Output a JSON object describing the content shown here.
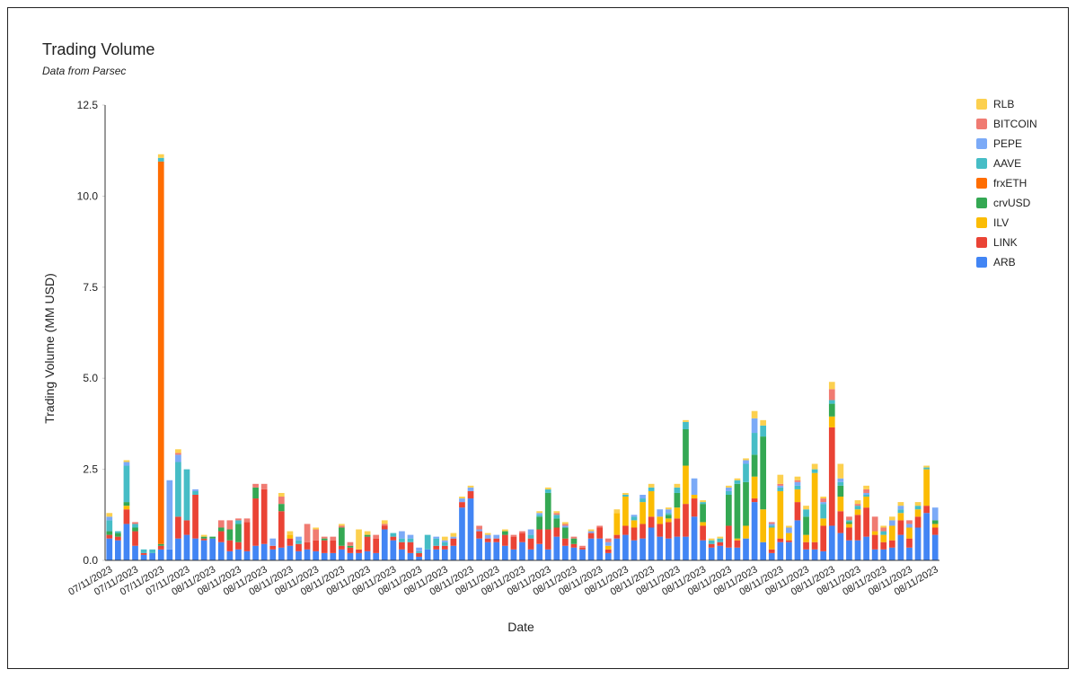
{
  "chart_data": {
    "type": "stacked_bar",
    "title": "Trading Volume",
    "subtitle": "Data from Parsec",
    "x_label": "Date",
    "y_label": "Trading Volume (MM USD)",
    "legend": "right",
    "grid": false,
    "ylim": [
      0,
      12.5
    ],
    "yticks": [
      {
        "value": 0,
        "label": "0.0"
      },
      2.5,
      {
        "value": 5,
        "label": "5.0"
      },
      7.5,
      {
        "value": 10,
        "label": "10.0"
      },
      12.5
    ],
    "categories": [
      "07/11/2023",
      null,
      null,
      "07/11/2023",
      null,
      null,
      "07/11/2023",
      null,
      null,
      "07/11/2023",
      null,
      null,
      "08/11/2023",
      null,
      null,
      "08/11/2023",
      null,
      null,
      "08/11/2023",
      null,
      null,
      "08/11/2023",
      null,
      null,
      "08/11/2023",
      null,
      null,
      "08/11/2023",
      null,
      null,
      "08/11/2023",
      null,
      null,
      "08/11/2023",
      null,
      null,
      "08/11/2023",
      null,
      null,
      "08/11/2023",
      null,
      null,
      "08/11/2023",
      null,
      null,
      "08/11/2023",
      null,
      null,
      "08/11/2023",
      null,
      null,
      "08/11/2023",
      null,
      null,
      "08/11/2023",
      null,
      null,
      "08/11/2023",
      null,
      null,
      "08/11/2023",
      null,
      null,
      "08/11/2023",
      null,
      null,
      "08/11/2023",
      null,
      null,
      "08/11/2023",
      null,
      null,
      "08/11/2023",
      null,
      null,
      "08/11/2023",
      null,
      null,
      "08/11/2023",
      null,
      null,
      "08/11/2023",
      null,
      null,
      "08/11/2023",
      null,
      null,
      "08/11/2023",
      null,
      null,
      "08/11/2023",
      null,
      null,
      "08/11/2023",
      null,
      null,
      "08/11/2023"
    ],
    "series": [
      {
        "name": "ARB",
        "color": "#4285f4",
        "values": [
          0.6,
          0.55,
          1.0,
          0.4,
          0.15,
          0.2,
          0.3,
          0.3,
          0.6,
          0.7,
          0.6,
          0.55,
          0.6,
          0.5,
          0.25,
          0.3,
          0.25,
          0.4,
          0.45,
          0.3,
          0.35,
          0.4,
          0.25,
          0.3,
          0.25,
          0.2,
          0.2,
          0.3,
          0.2,
          0.2,
          0.25,
          0.2,
          0.85,
          0.55,
          0.3,
          0.2,
          0.1,
          0.3,
          0.3,
          0.3,
          0.4,
          1.45,
          1.7,
          0.6,
          0.5,
          0.5,
          0.4,
          0.3,
          0.5,
          0.3,
          0.45,
          0.3,
          0.65,
          0.4,
          0.35,
          0.3,
          0.6,
          0.6,
          0.2,
          0.6,
          0.7,
          0.55,
          0.6,
          0.9,
          0.65,
          0.6,
          0.65,
          0.65,
          1.2,
          0.55,
          0.35,
          0.4,
          0.35,
          0.35,
          0.6,
          1.6,
          0.5,
          0.2,
          0.5,
          0.5,
          1.1,
          0.3,
          0.3,
          0.25,
          0.95,
          0.75,
          0.55,
          0.55,
          0.65,
          0.3,
          0.3,
          0.35,
          0.7,
          0.35,
          0.9,
          1.3,
          0.7
        ]
      },
      {
        "name": "LINK",
        "color": "#ea4335",
        "values": [
          0.1,
          0.1,
          0.4,
          0.4,
          0.05,
          0,
          0.1,
          0,
          0.6,
          0.4,
          1.2,
          0.05,
          0,
          0.3,
          0.3,
          0.2,
          0.8,
          1.3,
          1.5,
          0.1,
          1.0,
          0.2,
          0.2,
          0.2,
          0.3,
          0.35,
          0.35,
          0.1,
          0.15,
          0.1,
          0.4,
          0.4,
          0.1,
          0.1,
          0.2,
          0.3,
          0.1,
          0,
          0.1,
          0.1,
          0.2,
          0.15,
          0.2,
          0.2,
          0.1,
          0.1,
          0.3,
          0.35,
          0.25,
          0.3,
          0.4,
          0.55,
          0.25,
          0.2,
          0.1,
          0.05,
          0.15,
          0.3,
          0.1,
          0.1,
          0.25,
          0.35,
          0.4,
          0.3,
          0.35,
          0.45,
          0.5,
          0.9,
          0.5,
          0.4,
          0.1,
          0.1,
          0.6,
          0.2,
          0,
          0.1,
          0,
          0.1,
          0.1,
          0.05,
          0.5,
          0.2,
          0.2,
          0.7,
          2.7,
          0.6,
          0.35,
          0.7,
          0.8,
          0.4,
          0.2,
          0.2,
          0.4,
          0.25,
          0.3,
          0.2,
          0.2
        ]
      },
      {
        "name": "ILV",
        "color": "#fbbc04",
        "values": [
          0,
          0,
          0.1,
          0,
          0,
          0,
          0,
          0,
          0,
          0,
          0,
          0,
          0,
          0,
          0,
          0,
          0,
          0,
          0,
          0,
          0,
          0.1,
          0,
          0,
          0,
          0,
          0,
          0,
          0,
          0,
          0,
          0,
          0,
          0,
          0,
          0,
          0,
          0,
          0,
          0,
          0,
          0,
          0,
          0,
          0,
          0,
          0,
          0,
          0,
          0,
          0,
          0,
          0,
          0,
          0,
          0,
          0,
          0,
          0.1,
          0.6,
          0.8,
          0.2,
          0.6,
          0.7,
          0.2,
          0.1,
          0.3,
          1.05,
          0.1,
          0.1,
          0,
          0,
          0,
          0.05,
          0.35,
          0.6,
          0.9,
          0.6,
          1.3,
          0.2,
          0.35,
          0.2,
          1.9,
          0.2,
          0.3,
          0.4,
          0.1,
          0.15,
          0.3,
          0.1,
          0.2,
          0.4,
          0.2,
          0.3,
          0.2,
          1.0,
          0.1
        ]
      },
      {
        "name": "crvUSD",
        "color": "#34a853",
        "values": [
          0.1,
          0.1,
          0.1,
          0.1,
          0,
          0,
          0.05,
          0,
          0,
          0,
          0,
          0.05,
          0.05,
          0.1,
          0.3,
          0.5,
          0,
          0.3,
          0,
          0,
          0.2,
          0,
          0,
          0,
          0,
          0.05,
          0,
          0.5,
          0.05,
          0,
          0.05,
          0,
          0,
          0,
          0,
          0,
          0,
          0,
          0,
          0,
          0,
          0,
          0,
          0,
          0,
          0,
          0.1,
          0,
          0,
          0,
          0.35,
          1.0,
          0.25,
          0.3,
          0.15,
          0,
          0,
          0,
          0,
          0,
          0,
          0,
          0,
          0,
          0,
          0.1,
          0.4,
          1.0,
          0,
          0.5,
          0,
          0,
          0.85,
          1.5,
          1.2,
          0.6,
          2.0,
          0,
          0,
          0,
          0,
          0.5,
          0,
          0,
          0.35,
          0.3,
          0.05,
          0,
          0,
          0,
          0,
          0,
          0,
          0,
          0,
          0,
          0.1
        ]
      },
      {
        "name": "frxETH",
        "color": "#ff6d01",
        "values": [
          0,
          0,
          0,
          0,
          0,
          0,
          10.5,
          0,
          0,
          0,
          0,
          0,
          0,
          0,
          0,
          0,
          0,
          0,
          0,
          0,
          0,
          0,
          0,
          0,
          0,
          0,
          0,
          0,
          0,
          0,
          0,
          0,
          0,
          0,
          0,
          0,
          0,
          0,
          0,
          0,
          0,
          0,
          0,
          0,
          0,
          0,
          0,
          0,
          0,
          0,
          0,
          0,
          0,
          0,
          0,
          0,
          0,
          0,
          0,
          0,
          0,
          0,
          0,
          0,
          0,
          0,
          0,
          0,
          0,
          0,
          0,
          0,
          0,
          0,
          0,
          0,
          0,
          0,
          0,
          0,
          0,
          0,
          0,
          0,
          0,
          0,
          0,
          0,
          0,
          0,
          0,
          0,
          0,
          0,
          0,
          0,
          0
        ]
      },
      {
        "name": "AAVE",
        "color": "#46bdc6",
        "values": [
          0.3,
          0.05,
          1.0,
          0.1,
          0.1,
          0.1,
          0.1,
          0,
          1.5,
          1.4,
          0.1,
          0,
          0,
          0,
          0,
          0.1,
          0,
          0,
          0,
          0,
          0,
          0,
          0.1,
          0,
          0,
          0,
          0,
          0,
          0,
          0,
          0,
          0,
          0,
          0.1,
          0.1,
          0.1,
          0.05,
          0.4,
          0.2,
          0.1,
          0,
          0,
          0,
          0,
          0,
          0,
          0,
          0,
          0,
          0.1,
          0.05,
          0.1,
          0.1,
          0,
          0,
          0,
          0,
          0,
          0,
          0,
          0.05,
          0.1,
          0.1,
          0.1,
          0,
          0.05,
          0.15,
          0.2,
          0,
          0.05,
          0.1,
          0.1,
          0.1,
          0.1,
          0.5,
          0.6,
          0.3,
          0.05,
          0.1,
          0,
          0.1,
          0.2,
          0.1,
          0.4,
          0.1,
          0.1,
          0.05,
          0.1,
          0.05,
          0,
          0.1,
          0,
          0.1,
          0,
          0.1,
          0.05,
          0
        ]
      },
      {
        "name": "PEPE",
        "color": "#7baaf7",
        "values": [
          0.1,
          0,
          0.1,
          0,
          0,
          0,
          0,
          1.9,
          0.2,
          0,
          0.05,
          0,
          0,
          0,
          0,
          0,
          0,
          0,
          0,
          0.2,
          0,
          0,
          0.1,
          0,
          0,
          0,
          0,
          0,
          0,
          0,
          0,
          0,
          0,
          0,
          0.2,
          0.1,
          0.1,
          0,
          0.05,
          0.05,
          0.05,
          0.1,
          0.1,
          0.05,
          0.1,
          0.1,
          0,
          0,
          0,
          0.15,
          0.05,
          0,
          0,
          0.05,
          0,
          0,
          0.05,
          0,
          0.1,
          0,
          0,
          0.05,
          0.1,
          0,
          0.2,
          0.1,
          0,
          0,
          0.45,
          0,
          0,
          0,
          0.1,
          0,
          0.1,
          0.4,
          0,
          0.05,
          0.05,
          0.15,
          0.1,
          0,
          0,
          0.05,
          0,
          0.1,
          0,
          0,
          0.05,
          0,
          0,
          0.15,
          0.1,
          0.1,
          0,
          0,
          0.35
        ]
      },
      {
        "name": "BITCOIN",
        "color": "#f07b72",
        "values": [
          0,
          0,
          0,
          0.05,
          0,
          0,
          0,
          0,
          0.05,
          0,
          0,
          0,
          0,
          0.2,
          0.25,
          0.05,
          0.1,
          0.1,
          0.15,
          0,
          0.2,
          0,
          0,
          0.5,
          0.3,
          0.05,
          0.1,
          0.05,
          0.1,
          0,
          0,
          0.1,
          0.05,
          0,
          0,
          0,
          0,
          0,
          0,
          0,
          0,
          0,
          0,
          0.1,
          0,
          0,
          0,
          0.05,
          0.05,
          0,
          0,
          0,
          0.05,
          0.05,
          0.05,
          0.05,
          0,
          0.05,
          0.1,
          0,
          0,
          0,
          0,
          0,
          0,
          0,
          0,
          0,
          0,
          0,
          0,
          0,
          0,
          0,
          0,
          0,
          0,
          0.05,
          0.05,
          0,
          0.05,
          0,
          0,
          0.1,
          0.3,
          0,
          0.1,
          0.05,
          0.1,
          0.4,
          0.1,
          0,
          0,
          0.1,
          0,
          0,
          0
        ]
      },
      {
        "name": "RLB",
        "color": "#fcd04f",
        "values": [
          0.1,
          0,
          0.05,
          0,
          0,
          0,
          0.1,
          0,
          0.1,
          0,
          0,
          0.05,
          0,
          0,
          0,
          0,
          0,
          0,
          0,
          0,
          0.1,
          0.1,
          0,
          0,
          0.05,
          0,
          0,
          0.05,
          0,
          0.55,
          0.1,
          0,
          0.1,
          0,
          0,
          0,
          0,
          0,
          0,
          0.1,
          0.1,
          0.05,
          0.05,
          0,
          0.05,
          0,
          0.05,
          0,
          0,
          0,
          0.05,
          0.05,
          0.05,
          0.05,
          0,
          0,
          0.05,
          0,
          0,
          0.1,
          0.05,
          0,
          0,
          0.1,
          0,
          0.05,
          0.1,
          0.05,
          0,
          0.05,
          0.05,
          0.05,
          0.05,
          0.05,
          0.05,
          0.2,
          0.15,
          0,
          0.25,
          0.05,
          0.1,
          0.1,
          0.15,
          0.05,
          0.2,
          0.4,
          0,
          0.1,
          0.1,
          0,
          0.05,
          0.1,
          0.1,
          0,
          0.1,
          0.05,
          0
        ]
      }
    ]
  }
}
